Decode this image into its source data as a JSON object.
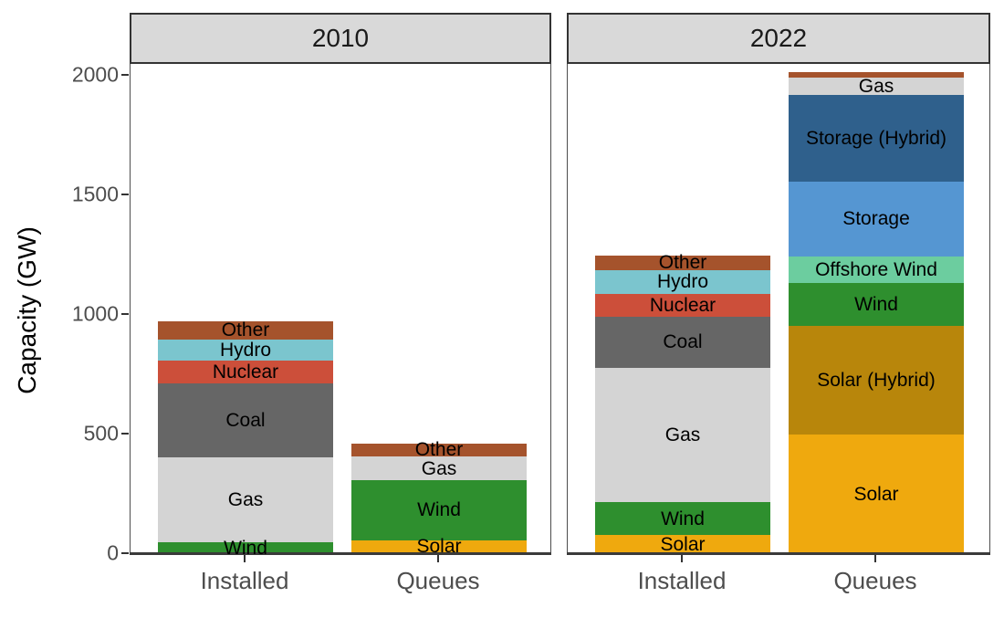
{
  "chart_data": {
    "type": "bar",
    "stacked": true,
    "ylabel": "Capacity (GW)",
    "yticks": [
      0,
      500,
      1000,
      1500,
      2000
    ],
    "ylim": [
      0,
      2046
    ],
    "grid": false,
    "legend_position": "none",
    "unit": "GW",
    "categories": [
      "Installed",
      "Queues"
    ],
    "facets": [
      {
        "title": "2010",
        "bars": [
          {
            "label": "Installed",
            "total": 970,
            "segments": [
              {
                "name": "Wind",
                "value": 45,
                "show_label": true
              },
              {
                "name": "Gas",
                "value": 355,
                "show_label": true
              },
              {
                "name": "Coal",
                "value": 310,
                "show_label": true
              },
              {
                "name": "Nuclear",
                "value": 95,
                "show_label": true
              },
              {
                "name": "Hydro",
                "value": 90,
                "show_label": true
              },
              {
                "name": "Other",
                "value": 75,
                "show_label": true
              }
            ]
          },
          {
            "label": "Queues",
            "total": 460,
            "segments": [
              {
                "name": "Solar",
                "value": 55,
                "show_label": true
              },
              {
                "name": "Wind",
                "value": 250,
                "show_label": true
              },
              {
                "name": "Gas",
                "value": 100,
                "show_label": true
              },
              {
                "name": "Other",
                "value": 55,
                "show_label": true
              }
            ]
          }
        ]
      },
      {
        "title": "2022",
        "bars": [
          {
            "label": "Installed",
            "total": 1245,
            "segments": [
              {
                "name": "Solar",
                "value": 75,
                "show_label": true
              },
              {
                "name": "Wind",
                "value": 140,
                "show_label": true
              },
              {
                "name": "Gas",
                "value": 560,
                "show_label": true
              },
              {
                "name": "Coal",
                "value": 215,
                "show_label": true
              },
              {
                "name": "Nuclear",
                "value": 95,
                "show_label": true
              },
              {
                "name": "Hydro",
                "value": 100,
                "show_label": true
              },
              {
                "name": "Other",
                "value": 60,
                "show_label": true
              }
            ]
          },
          {
            "label": "Queues",
            "total": 2010,
            "segments": [
              {
                "name": "Solar",
                "value": 495,
                "show_label": true
              },
              {
                "name": "Solar (Hybrid)",
                "value": 455,
                "show_label": true
              },
              {
                "name": "Wind",
                "value": 180,
                "show_label": true
              },
              {
                "name": "Offshore Wind",
                "value": 110,
                "show_label": true
              },
              {
                "name": "Storage",
                "value": 315,
                "show_label": true
              },
              {
                "name": "Storage (Hybrid)",
                "value": 360,
                "show_label": true
              },
              {
                "name": "Gas",
                "value": 75,
                "show_label": true
              },
              {
                "name": "Other",
                "value": 20,
                "show_label": false
              }
            ]
          }
        ]
      }
    ],
    "colors": {
      "Solar": "#EFA90E",
      "Solar (Hybrid)": "#B8860B",
      "Wind": "#2E8F2E",
      "Offshore Wind": "#6CCD9F",
      "Storage": "#5596D2",
      "Storage (Hybrid)": "#2F608C",
      "Gas": "#D4D4D4",
      "Coal": "#666666",
      "Nuclear": "#CC4F3A",
      "Hydro": "#7BC5CE",
      "Other": "#A5532C"
    }
  }
}
